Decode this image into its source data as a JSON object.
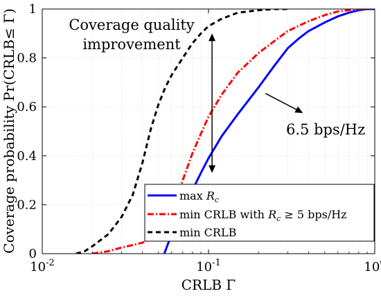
{
  "chart_data": {
    "type": "line",
    "title": "",
    "xlabel": "CRLB Γ",
    "ylabel": "Coverage probability Pr(CRLB≤ Γ)",
    "x_scale": "log",
    "xlim": [
      0.01,
      1
    ],
    "ylim": [
      0,
      1
    ],
    "grid": true,
    "x_ticks": [
      {
        "value": 0.01,
        "base": "10",
        "exp": "-2"
      },
      {
        "value": 0.1,
        "base": "10",
        "exp": "-1"
      },
      {
        "value": 1,
        "base": "10",
        "exp": "0"
      }
    ],
    "y_ticks": [
      {
        "value": 0,
        "label": "0"
      },
      {
        "value": 0.2,
        "label": "0.2"
      },
      {
        "value": 0.4,
        "label": "0.4"
      },
      {
        "value": 0.6,
        "label": "0.6"
      },
      {
        "value": 0.8,
        "label": "0.8"
      },
      {
        "value": 1,
        "label": "1"
      }
    ],
    "legend_position": "bottom-right",
    "series": [
      {
        "name": "max R_c",
        "legend_label": "max Rc",
        "color": "#0000ff",
        "style": "solid",
        "x": [
          0.0542,
          0.06,
          0.07,
          0.08,
          0.09,
          0.1,
          0.12,
          0.15,
          0.2,
          0.25,
          0.3,
          0.35,
          0.4,
          0.5,
          0.6,
          0.7,
          0.8,
          0.9,
          1.0
        ],
        "y": [
          0.0,
          0.08,
          0.18,
          0.26,
          0.33,
          0.39,
          0.48,
          0.57,
          0.68,
          0.77,
          0.84,
          0.88,
          0.91,
          0.945,
          0.97,
          0.985,
          0.995,
          1.0,
          1.0
        ]
      },
      {
        "name": "min CRLB with R_c ≥ 5 bps/Hz",
        "legend_label": "min CRLB with Rc ≥ 5 bps/Hz",
        "color": "#ff0000",
        "style": "dashdot",
        "x": [
          0.02,
          0.025,
          0.03,
          0.035,
          0.04,
          0.045,
          0.05,
          0.055,
          0.06,
          0.065,
          0.07,
          0.08,
          0.09,
          0.1,
          0.12,
          0.15,
          0.2,
          0.25,
          0.3,
          0.4,
          0.5,
          0.6,
          0.8,
          0.9
        ],
        "y": [
          0.0,
          0.01,
          0.025,
          0.035,
          0.045,
          0.06,
          0.08,
          0.11,
          0.16,
          0.23,
          0.3,
          0.41,
          0.49,
          0.56,
          0.65,
          0.74,
          0.82,
          0.87,
          0.91,
          0.95,
          0.975,
          0.99,
          1.0,
          1.0
        ]
      },
      {
        "name": "min CRLB",
        "legend_label": "min CRLB",
        "color": "#000000",
        "style": "dashed",
        "x": [
          0.016,
          0.018,
          0.02,
          0.025,
          0.03,
          0.035,
          0.04,
          0.045,
          0.05,
          0.055,
          0.06,
          0.07,
          0.08,
          0.09,
          0.1,
          0.12,
          0.15,
          0.2,
          0.25,
          0.3
        ],
        "y": [
          0.0,
          0.01,
          0.03,
          0.08,
          0.15,
          0.24,
          0.37,
          0.51,
          0.61,
          0.68,
          0.73,
          0.8,
          0.86,
          0.9,
          0.93,
          0.96,
          0.985,
          0.995,
          1.0,
          1.0
        ]
      }
    ],
    "annotations": [
      {
        "name": "coverage-quality",
        "text_lines": [
          "Coverage quality",
          "improvement"
        ],
        "arrow": "double",
        "arrow_x": 0.105,
        "arrow_y": [
          0.33,
          0.9
        ]
      },
      {
        "name": "rate",
        "text": "6.5 bps/Hz",
        "arrow_from": [
          0.22,
          0.655
        ],
        "arrow_to": [
          0.37,
          0.575
        ]
      }
    ]
  }
}
